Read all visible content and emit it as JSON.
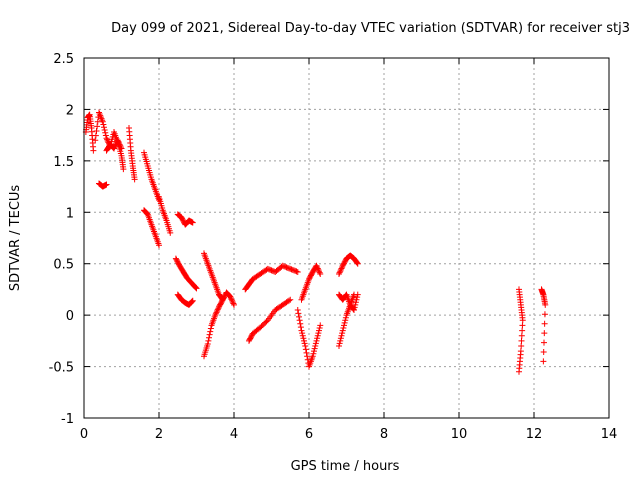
{
  "chart_data": {
    "type": "scatter",
    "title": "Day 099 of 2021, Sidereal Day-to-day VTEC variation (SDTVAR) for receiver stj3",
    "xlabel": "GPS time / hours",
    "ylabel": "SDTVAR / TECUs",
    "xlim": [
      0,
      14
    ],
    "ylim": [
      -1,
      2.5
    ],
    "xticks": [
      0,
      2,
      4,
      6,
      8,
      10,
      12,
      14
    ],
    "yticks": [
      -1,
      -0.5,
      0,
      0.5,
      1,
      1.5,
      2,
      2.5
    ],
    "xtick_labels": [
      "0",
      "2",
      "4",
      "6",
      "8",
      "10",
      "12",
      "14"
    ],
    "ytick_labels": [
      "-1",
      "-0.5",
      "0",
      "0.5",
      "1",
      "1.5",
      "2",
      "2.5"
    ],
    "grid": true,
    "marker": "+",
    "series_color": "#ff0000",
    "segments": [
      {
        "name": "arc-a",
        "x": [
          0.05,
          0.1,
          0.15,
          0.2,
          0.25
        ],
        "y": [
          1.78,
          1.92,
          1.95,
          1.82,
          1.6
        ]
      },
      {
        "name": "arc-b",
        "x": [
          0.3,
          0.4,
          0.5,
          0.6,
          0.7,
          0.8,
          0.9,
          1.0,
          1.05
        ],
        "y": [
          1.7,
          1.97,
          1.88,
          1.72,
          1.64,
          1.78,
          1.68,
          1.55,
          1.42
        ]
      },
      {
        "name": "arc-c",
        "x": [
          0.4,
          0.5,
          0.6
        ],
        "y": [
          1.28,
          1.25,
          1.27
        ]
      },
      {
        "name": "arc-d",
        "x": [
          0.6,
          0.7,
          0.8,
          0.9,
          1.0
        ],
        "y": [
          1.6,
          1.66,
          1.62,
          1.7,
          1.62
        ]
      },
      {
        "name": "arc-e",
        "x": [
          1.2,
          1.25,
          1.3,
          1.35
        ],
        "y": [
          1.82,
          1.6,
          1.45,
          1.32
        ]
      },
      {
        "name": "arc-f",
        "x": [
          1.6,
          1.7,
          1.8,
          1.9,
          2.0
        ],
        "y": [
          1.58,
          1.45,
          1.32,
          1.22,
          1.12
        ]
      },
      {
        "name": "arc-g",
        "x": [
          1.6,
          1.7,
          1.8,
          1.9,
          2.0
        ],
        "y": [
          1.02,
          0.98,
          0.88,
          0.78,
          0.68
        ]
      },
      {
        "name": "arc-h",
        "x": [
          2.0,
          2.1,
          2.2,
          2.3
        ],
        "y": [
          1.15,
          1.02,
          0.92,
          0.8
        ]
      },
      {
        "name": "arc-i",
        "x": [
          2.5,
          2.6,
          2.7,
          2.8,
          2.9
        ],
        "y": [
          0.98,
          0.95,
          0.88,
          0.92,
          0.9
        ]
      },
      {
        "name": "arc-j",
        "x": [
          2.45,
          2.55,
          2.65,
          2.75,
          2.9,
          3.0
        ],
        "y": [
          0.55,
          0.48,
          0.42,
          0.36,
          0.3,
          0.26
        ]
      },
      {
        "name": "arc-k",
        "x": [
          2.5,
          2.6,
          2.7,
          2.8,
          2.9
        ],
        "y": [
          0.2,
          0.15,
          0.12,
          0.1,
          0.14
        ]
      },
      {
        "name": "arc-l",
        "x": [
          3.2,
          3.3,
          3.4,
          3.5,
          3.6
        ],
        "y": [
          0.6,
          0.5,
          0.4,
          0.3,
          0.2
        ]
      },
      {
        "name": "arc-m",
        "x": [
          3.2,
          3.3,
          3.4,
          3.5,
          3.6,
          3.7
        ],
        "y": [
          -0.4,
          -0.28,
          -0.1,
          0.0,
          0.08,
          0.15
        ]
      },
      {
        "name": "arc-n",
        "x": [
          3.6,
          3.7,
          3.8,
          3.9,
          4.0
        ],
        "y": [
          0.2,
          0.15,
          0.22,
          0.18,
          0.1
        ]
      },
      {
        "name": "arc-o",
        "x": [
          4.3,
          4.4,
          4.5,
          4.7,
          4.9,
          5.1,
          5.3,
          5.5,
          5.7
        ],
        "y": [
          0.25,
          0.3,
          0.35,
          0.4,
          0.45,
          0.42,
          0.48,
          0.45,
          0.42
        ]
      },
      {
        "name": "arc-p",
        "x": [
          4.4,
          4.5,
          4.7,
          4.9,
          5.1,
          5.3,
          5.5
        ],
        "y": [
          -0.25,
          -0.18,
          -0.12,
          -0.05,
          0.05,
          0.1,
          0.15
        ]
      },
      {
        "name": "arc-q",
        "x": [
          5.7,
          5.8,
          5.9,
          6.0,
          6.1,
          6.2,
          6.3
        ],
        "y": [
          0.05,
          -0.15,
          -0.3,
          -0.5,
          -0.4,
          -0.25,
          -0.1
        ]
      },
      {
        "name": "arc-r",
        "x": [
          5.8,
          5.9,
          6.0,
          6.1,
          6.2,
          6.3
        ],
        "y": [
          0.15,
          0.25,
          0.35,
          0.42,
          0.48,
          0.4
        ]
      },
      {
        "name": "arc-s",
        "x": [
          6.8,
          6.9,
          7.0,
          7.1,
          7.2
        ],
        "y": [
          -0.3,
          -0.15,
          0.0,
          0.1,
          0.2
        ]
      },
      {
        "name": "arc-t",
        "x": [
          6.8,
          6.9,
          7.0,
          7.1,
          7.2,
          7.3
        ],
        "y": [
          0.4,
          0.48,
          0.55,
          0.58,
          0.55,
          0.5
        ]
      },
      {
        "name": "arc-u",
        "x": [
          6.8,
          6.9,
          7.0,
          7.1,
          7.2,
          7.3
        ],
        "y": [
          0.2,
          0.15,
          0.2,
          0.1,
          0.05,
          0.2
        ]
      },
      {
        "name": "arc-v",
        "x": [
          11.6,
          11.65,
          11.7,
          11.65,
          11.6
        ],
        "y": [
          0.25,
          0.1,
          -0.05,
          -0.35,
          -0.55
        ]
      },
      {
        "name": "arc-w",
        "x": [
          12.2,
          12.25,
          12.3,
          12.25
        ],
        "y": [
          0.25,
          0.2,
          0.1,
          -0.45
        ]
      }
    ]
  }
}
